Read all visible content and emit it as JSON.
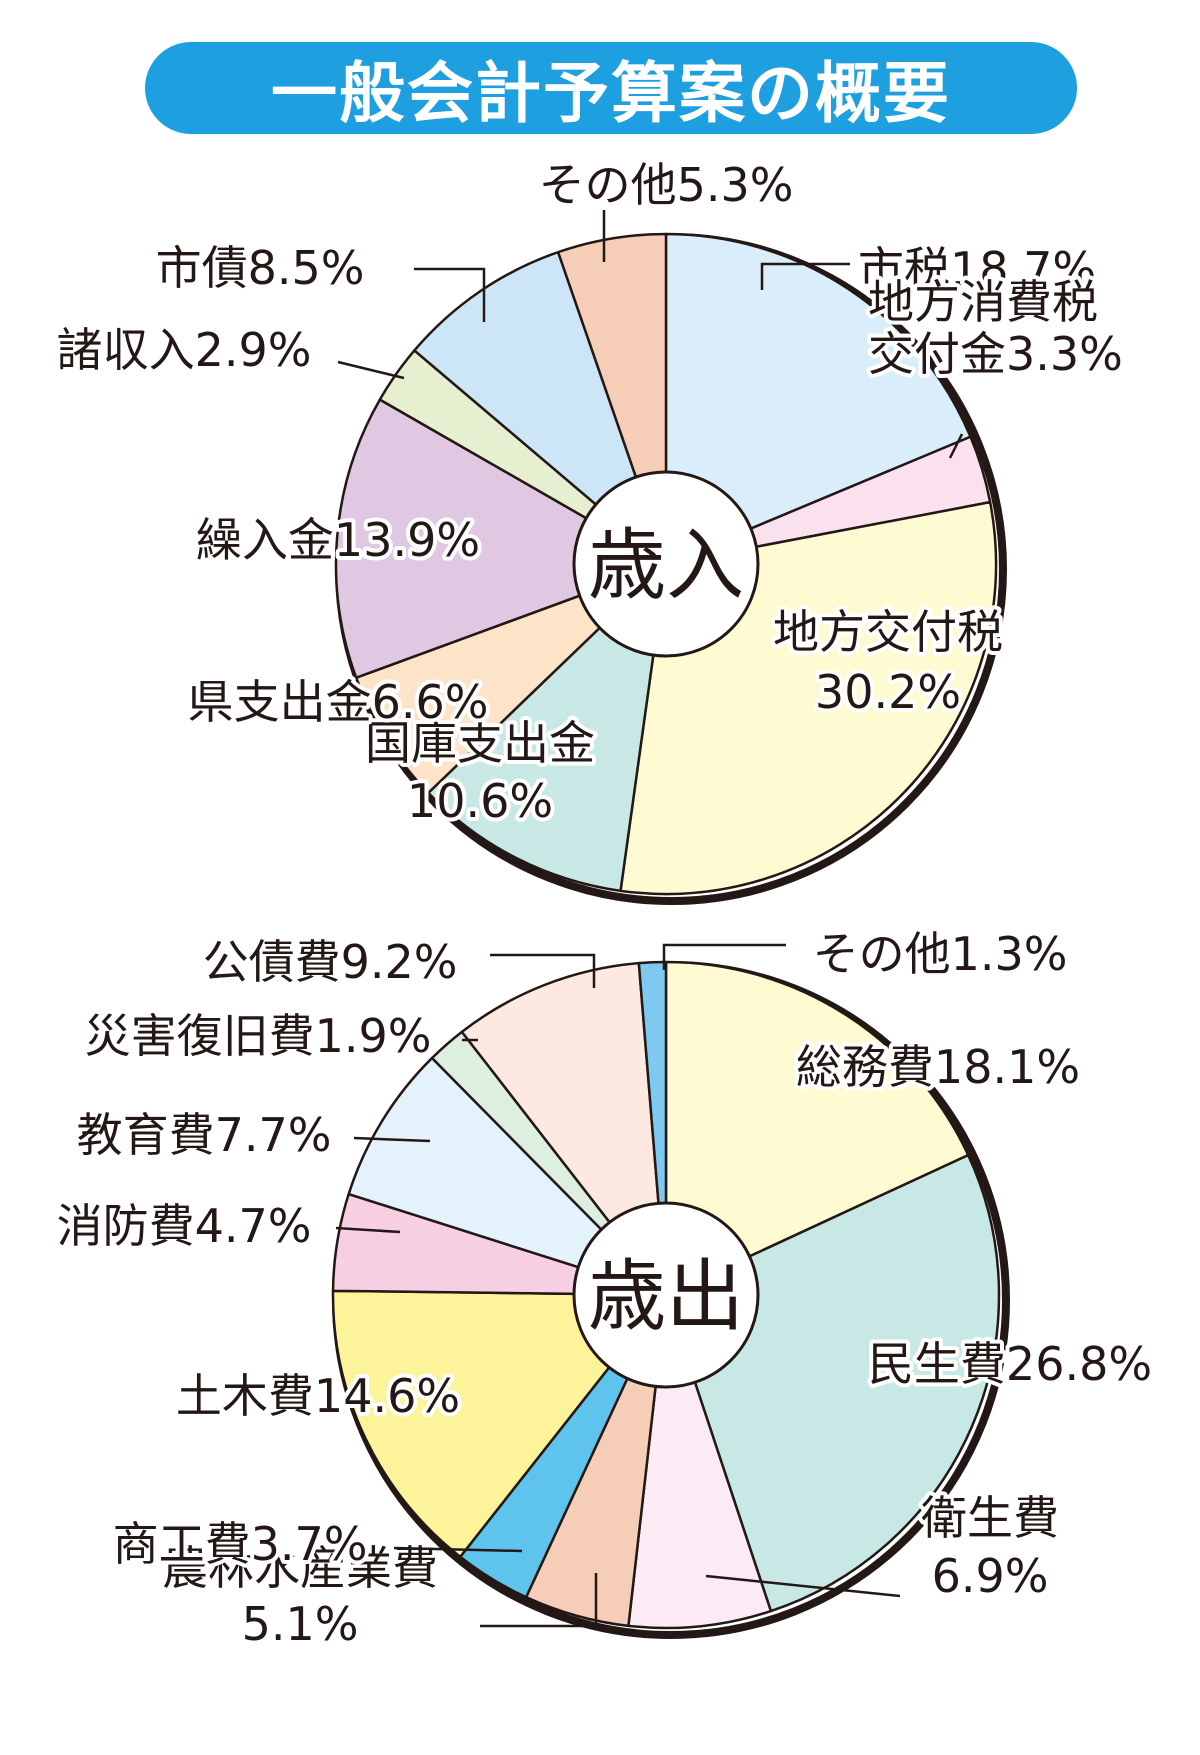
{
  "title": "一般会計予算案の概要",
  "chart_data": [
    {
      "type": "pie",
      "center_label": "歳入",
      "unit": "%",
      "slices": [
        {
          "name": "市税",
          "value": 18.7,
          "color": "#d9eefa",
          "label_lines": [
            "市税18.7%"
          ]
        },
        {
          "name": "地方消費税交付金",
          "value": 3.3,
          "color": "#fbe0ee",
          "label_lines": [
            "地方消費税",
            "交付金3.3%"
          ]
        },
        {
          "name": "地方交付税",
          "value": 30.2,
          "color": "#fefbd2",
          "label_lines": [
            "地方交付税",
            "30.2%"
          ]
        },
        {
          "name": "国庫支出金",
          "value": 10.6,
          "color": "#c8e8e6",
          "label_lines": [
            "国庫支出金",
            "10.6%"
          ]
        },
        {
          "name": "県支出金",
          "value": 6.6,
          "color": "#fde4c8",
          "label_lines": [
            "県支出金6.6%"
          ]
        },
        {
          "name": "繰入金",
          "value": 13.9,
          "color": "#e0c8e2",
          "label_lines": [
            "繰入金13.9%"
          ]
        },
        {
          "name": "諸収入",
          "value": 2.9,
          "color": "#e6f0d0",
          "label_lines": [
            "諸収入2.9%"
          ]
        },
        {
          "name": "市債",
          "value": 8.5,
          "color": "#cde6f7",
          "label_lines": [
            "市債8.5%"
          ]
        },
        {
          "name": "その他",
          "value": 5.3,
          "color": "#f6cdb6",
          "label_lines": [
            "その他5.3%"
          ]
        }
      ]
    },
    {
      "type": "pie",
      "center_label": "歳出",
      "unit": "%",
      "slices": [
        {
          "name": "総務費",
          "value": 18.1,
          "color": "#fefbd2",
          "label_lines": [
            "総務費18.1%"
          ]
        },
        {
          "name": "民生費",
          "value": 26.8,
          "color": "#c8e8e6",
          "label_lines": [
            "民生費26.8%"
          ]
        },
        {
          "name": "衛生費",
          "value": 6.9,
          "color": "#fcebf4",
          "label_lines": [
            "衛生費",
            "6.9%"
          ]
        },
        {
          "name": "農林水産業費",
          "value": 5.1,
          "color": "#f6cdb6",
          "label_lines": [
            "農林水産業費",
            "5.1%"
          ]
        },
        {
          "name": "商工費",
          "value": 3.7,
          "color": "#5ec4ee",
          "label_lines": [
            "商工費3.7%"
          ]
        },
        {
          "name": "土木費",
          "value": 14.6,
          "color": "#fdf39a",
          "label_lines": [
            "土木費14.6%"
          ]
        },
        {
          "name": "消防費",
          "value": 4.7,
          "color": "#f7cfe2",
          "label_lines": [
            "消防費4.7%"
          ]
        },
        {
          "name": "教育費",
          "value": 7.7,
          "color": "#e3f2fb",
          "label_lines": [
            "教育費7.7%"
          ]
        },
        {
          "name": "災害復旧費",
          "value": 1.9,
          "color": "#dcefe0",
          "label_lines": [
            "災害復旧費1.9%"
          ]
        },
        {
          "name": "公債費",
          "value": 9.2,
          "color": "#fde9e0",
          "label_lines": [
            "公債費9.2%"
          ]
        },
        {
          "name": "その他",
          "value": 1.3,
          "color": "#7ec9f0",
          "label_lines": [
            "その他1.3%"
          ]
        }
      ]
    }
  ]
}
